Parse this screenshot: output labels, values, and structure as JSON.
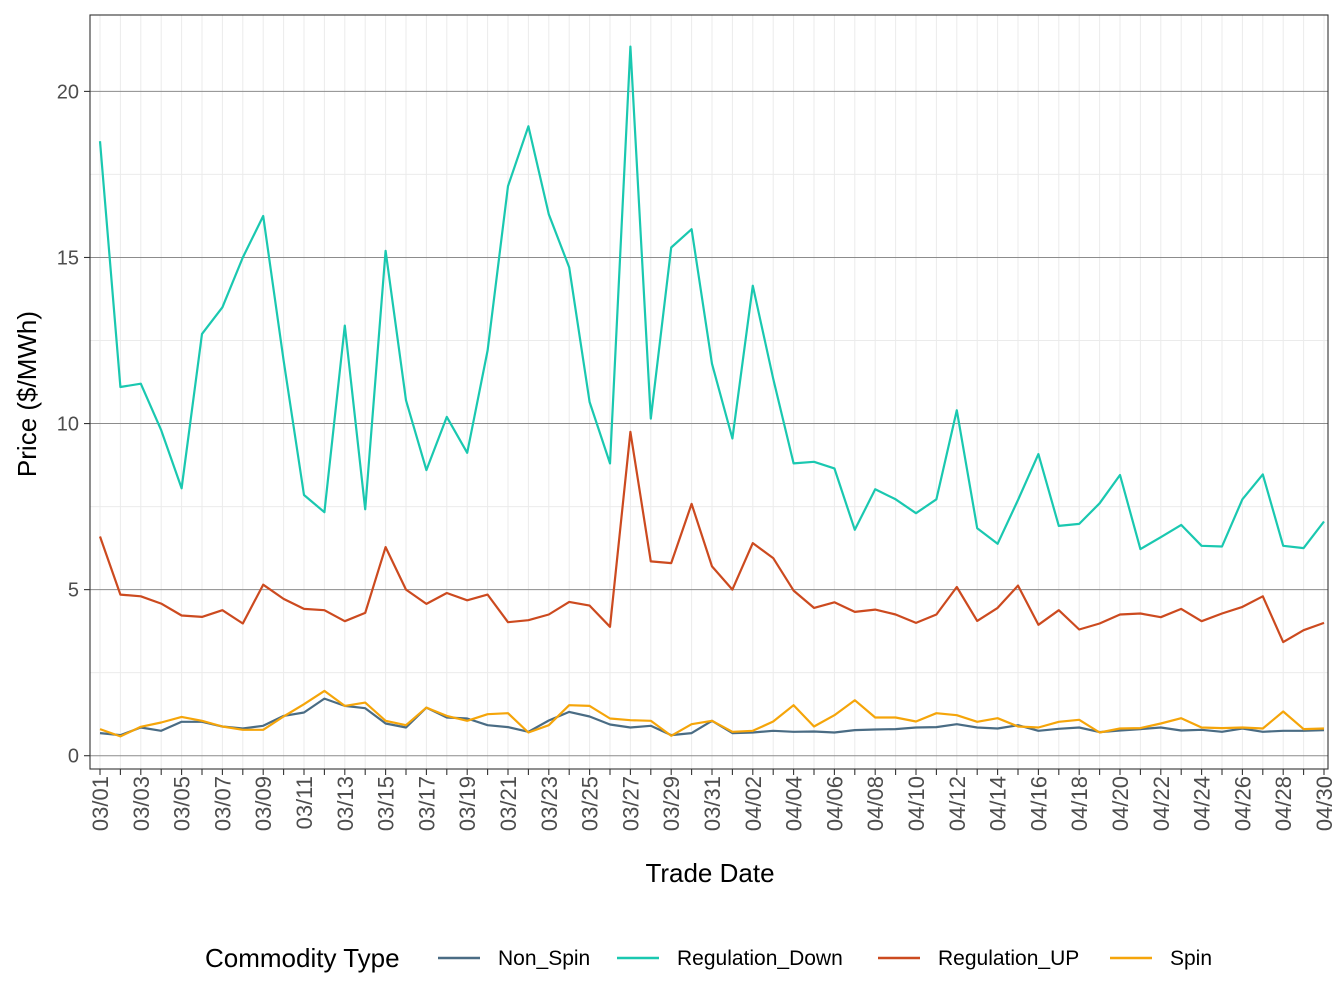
{
  "chart_data": {
    "type": "line",
    "xlabel": "Trade Date",
    "ylabel": "Price ($/MWh)",
    "ylim": [
      -0.4,
      22.3
    ],
    "yticks": [
      0,
      5,
      10,
      15,
      20
    ],
    "grid": true,
    "legend": {
      "title": "Commodity Type",
      "placement": "bottom"
    },
    "x": [
      "03/01",
      "03/02",
      "03/03",
      "03/04",
      "03/05",
      "03/06",
      "03/07",
      "03/08",
      "03/09",
      "03/10",
      "03/11",
      "03/12",
      "03/13",
      "03/14",
      "03/15",
      "03/16",
      "03/17",
      "03/18",
      "03/19",
      "03/20",
      "03/21",
      "03/22",
      "03/23",
      "03/24",
      "03/25",
      "03/26",
      "03/27",
      "03/28",
      "03/29",
      "03/30",
      "03/31",
      "04/01",
      "04/02",
      "04/03",
      "04/04",
      "04/05",
      "04/06",
      "04/07",
      "04/08",
      "04/09",
      "04/10",
      "04/11",
      "04/12",
      "04/13",
      "04/14",
      "04/15",
      "04/16",
      "04/17",
      "04/18",
      "04/19",
      "04/20",
      "04/21",
      "04/22",
      "04/23",
      "04/24",
      "04/25",
      "04/26",
      "04/27",
      "04/28",
      "04/29",
      "04/30"
    ],
    "xtick_labels": [
      "03/01",
      "03/03",
      "03/05",
      "03/07",
      "03/09",
      "03/11",
      "03/13",
      "03/15",
      "03/17",
      "03/19",
      "03/21",
      "03/23",
      "03/25",
      "03/27",
      "03/29",
      "03/31",
      "04/02",
      "04/04",
      "04/06",
      "04/08",
      "04/10",
      "04/12",
      "04/14",
      "04/16",
      "04/18",
      "04/20",
      "04/22",
      "04/24",
      "04/26",
      "04/28",
      "04/30"
    ],
    "series": [
      {
        "name": "Non_Spin",
        "color": "#4a6c84",
        "values": [
          0.68,
          0.62,
          0.85,
          0.75,
          1.02,
          1.02,
          0.88,
          0.82,
          0.9,
          1.2,
          1.3,
          1.72,
          1.5,
          1.43,
          0.97,
          0.85,
          1.45,
          1.15,
          1.12,
          0.92,
          0.86,
          0.72,
          1.06,
          1.32,
          1.18,
          0.94,
          0.85,
          0.9,
          0.62,
          0.68,
          1.05,
          0.68,
          0.7,
          0.75,
          0.72,
          0.73,
          0.7,
          0.77,
          0.79,
          0.8,
          0.85,
          0.86,
          0.95,
          0.85,
          0.82,
          0.92,
          0.75,
          0.81,
          0.85,
          0.71,
          0.76,
          0.8,
          0.85,
          0.76,
          0.78,
          0.72,
          0.82,
          0.72,
          0.75,
          0.75,
          0.77
        ]
      },
      {
        "name": "Regulation_Down",
        "color": "#1ac8b0",
        "values": [
          18.5,
          11.1,
          11.2,
          9.8,
          8.05,
          12.7,
          13.5,
          15.0,
          16.25,
          11.9,
          7.85,
          7.33,
          12.95,
          7.42,
          15.2,
          10.7,
          8.6,
          10.2,
          9.12,
          12.2,
          17.15,
          18.95,
          16.3,
          14.7,
          10.65,
          8.8,
          21.35,
          10.15,
          15.3,
          15.85,
          11.8,
          9.55,
          14.15,
          11.35,
          8.8,
          8.85,
          8.65,
          6.8,
          8.02,
          7.72,
          7.3,
          7.72,
          10.4,
          6.85,
          6.38,
          7.7,
          9.08,
          6.92,
          6.98,
          7.6,
          8.45,
          6.22,
          6.58,
          6.95,
          6.32,
          6.3,
          7.72,
          8.47,
          6.32,
          6.25,
          7.05
        ]
      },
      {
        "name": "Regulation_UP",
        "color": "#cc4a1f",
        "values": [
          6.6,
          4.85,
          4.8,
          4.58,
          4.22,
          4.18,
          4.38,
          3.98,
          5.15,
          4.72,
          4.42,
          4.38,
          4.05,
          4.3,
          6.28,
          5.0,
          4.57,
          4.9,
          4.68,
          4.85,
          4.02,
          4.08,
          4.25,
          4.63,
          4.52,
          3.88,
          9.75,
          5.85,
          5.8,
          7.58,
          5.7,
          5.0,
          6.4,
          5.95,
          4.97,
          4.45,
          4.62,
          4.33,
          4.4,
          4.25,
          4.0,
          4.25,
          5.08,
          4.06,
          4.45,
          5.12,
          3.94,
          4.38,
          3.8,
          3.98,
          4.25,
          4.28,
          4.17,
          4.42,
          4.05,
          4.28,
          4.48,
          4.8,
          3.42,
          3.78,
          4.0
        ]
      },
      {
        "name": "Spin",
        "color": "#f5a50a",
        "values": [
          0.8,
          0.58,
          0.87,
          1.0,
          1.17,
          1.05,
          0.88,
          0.78,
          0.78,
          1.18,
          1.55,
          1.95,
          1.5,
          1.6,
          1.05,
          0.92,
          1.45,
          1.2,
          1.05,
          1.25,
          1.28,
          0.7,
          0.92,
          1.52,
          1.5,
          1.12,
          1.07,
          1.05,
          0.6,
          0.95,
          1.05,
          0.72,
          0.75,
          1.03,
          1.52,
          0.88,
          1.22,
          1.67,
          1.15,
          1.15,
          1.03,
          1.28,
          1.22,
          1.02,
          1.13,
          0.88,
          0.85,
          1.02,
          1.08,
          0.7,
          0.82,
          0.83,
          0.97,
          1.13,
          0.85,
          0.83,
          0.85,
          0.82,
          1.33,
          0.8,
          0.82
        ]
      }
    ]
  }
}
